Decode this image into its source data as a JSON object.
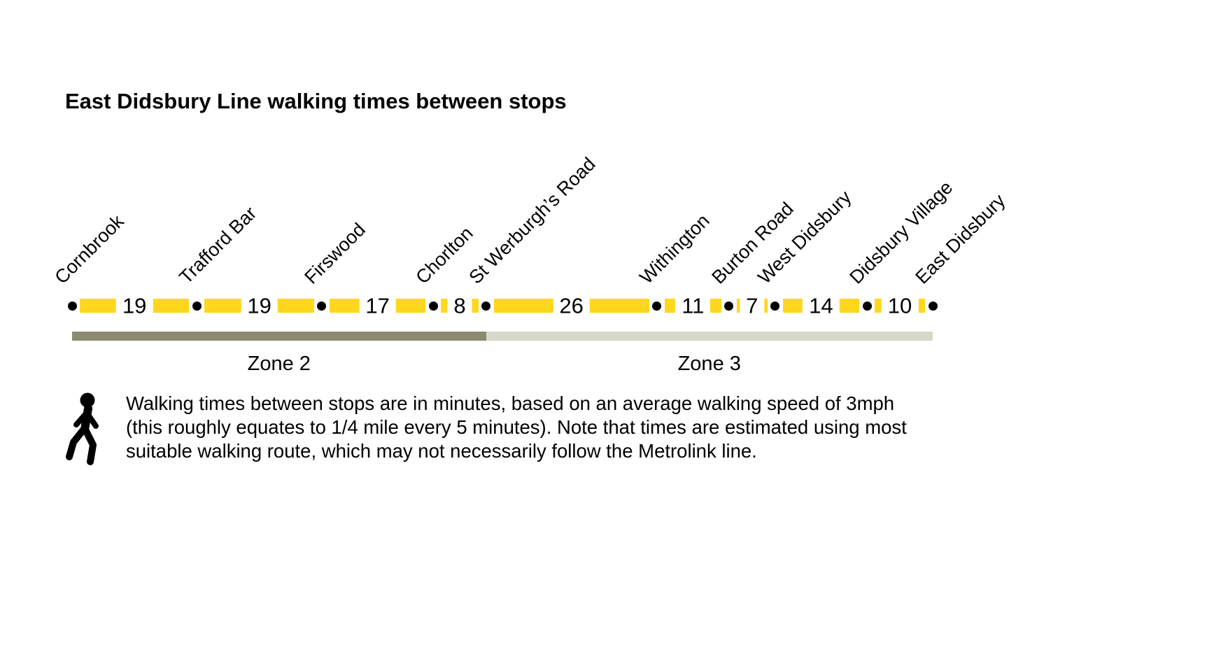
{
  "page": {
    "title": "East Didsbury Line walking times between stops"
  },
  "chart_data": {
    "type": "line",
    "title": "East Didsbury Line walking times between stops",
    "stops": [
      "Cornbrook",
      "Trafford Bar",
      "Firswood",
      "Chorlton",
      "St Werburgh’s Road",
      "Withington",
      "Burton Road",
      "West Didsbury",
      "Didsbury Village",
      "East Didsbury"
    ],
    "segment_times_minutes": [
      19,
      19,
      17,
      8,
      26,
      11,
      7,
      14,
      10
    ],
    "zones": [
      {
        "label": "Zone 2",
        "from_stop_index": 0,
        "to_stop_index": 4,
        "color": "#8b8b70"
      },
      {
        "label": "Zone 3",
        "from_stop_index": 4,
        "to_stop_index": 9,
        "color": "#d7d7ca"
      }
    ],
    "line_color": "#ffd71c",
    "stop_dot_color": "#000000"
  },
  "legend": {
    "icon": "walking-person-icon",
    "text": "Walking times between stops are in minutes, based on an average walking speed of 3mph (this roughly equates to 1/4 mile every 5 minutes). Note that times are estimated using most suitable walking route, which may not necessarily follow the Metrolink line."
  }
}
